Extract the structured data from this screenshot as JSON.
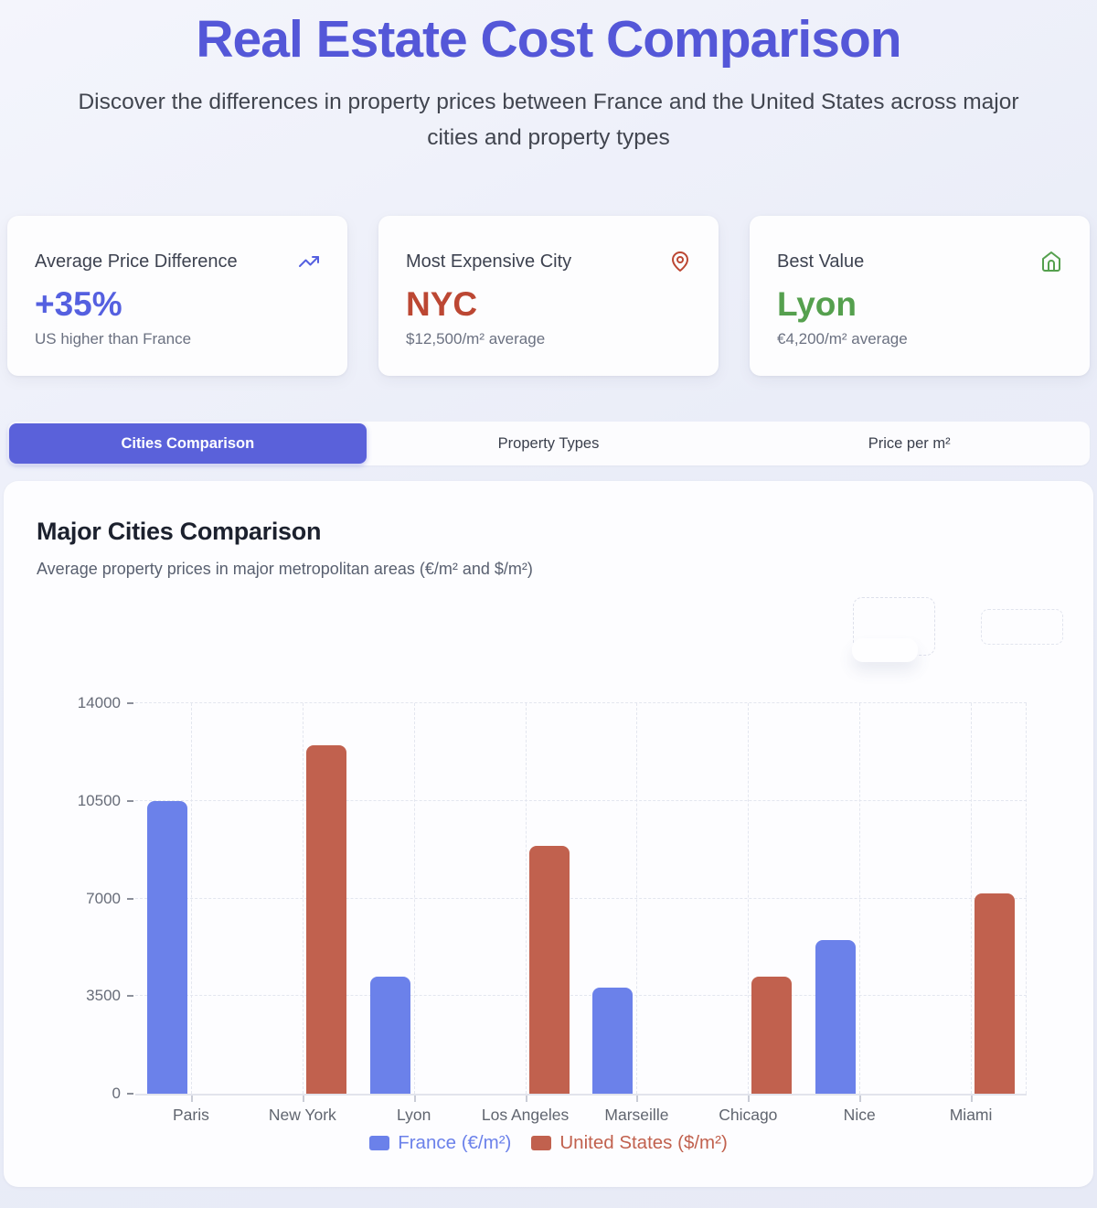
{
  "theme": {
    "accent": "#5a61da",
    "title_color": "#5457d8"
  },
  "page": {
    "title": "Real Estate Cost Comparison",
    "subtitle": "Discover the differences in property prices between France and the United States across major cities and property types"
  },
  "stats": [
    {
      "label": "Average Price Difference",
      "value": "+35%",
      "sub": "US higher than France",
      "icon": "trending-up-icon",
      "color": "#5560e0"
    },
    {
      "label": "Most Expensive City",
      "value": "NYC",
      "sub": "$12,500/m² average",
      "icon": "map-pin-icon",
      "color": "#bc4733"
    },
    {
      "label": "Best Value",
      "value": "Lyon",
      "sub": "€4,200/m² average",
      "icon": "home-icon",
      "color": "#55a04e"
    }
  ],
  "tabs": [
    {
      "label": "Cities Comparison",
      "active": true
    },
    {
      "label": "Property Types",
      "active": false
    },
    {
      "label": "Price per m²",
      "active": false
    }
  ],
  "chart_section": {
    "title": "Major Cities Comparison",
    "subtitle": "Average property prices in major metropolitan areas (€/m² and $/m²)"
  },
  "chart_data": {
    "type": "bar",
    "title": "Major Cities Comparison",
    "categories": [
      "Paris",
      "New York",
      "Lyon",
      "Los Angeles",
      "Marseille",
      "Chicago",
      "Nice",
      "Miami"
    ],
    "series": [
      {
        "name": "France (€/m²)",
        "color": "#6b81ea",
        "values": [
          10500,
          null,
          4200,
          null,
          3800,
          null,
          5500,
          null
        ]
      },
      {
        "name": "United States ($/m²)",
        "color": "#c1614e",
        "values": [
          null,
          12500,
          null,
          8900,
          null,
          4200,
          null,
          7200
        ]
      }
    ],
    "yticks": [
      0,
      3500,
      7000,
      10500,
      14000
    ],
    "ylim": [
      0,
      14000
    ],
    "grid": true,
    "legend_position": "bottom"
  }
}
